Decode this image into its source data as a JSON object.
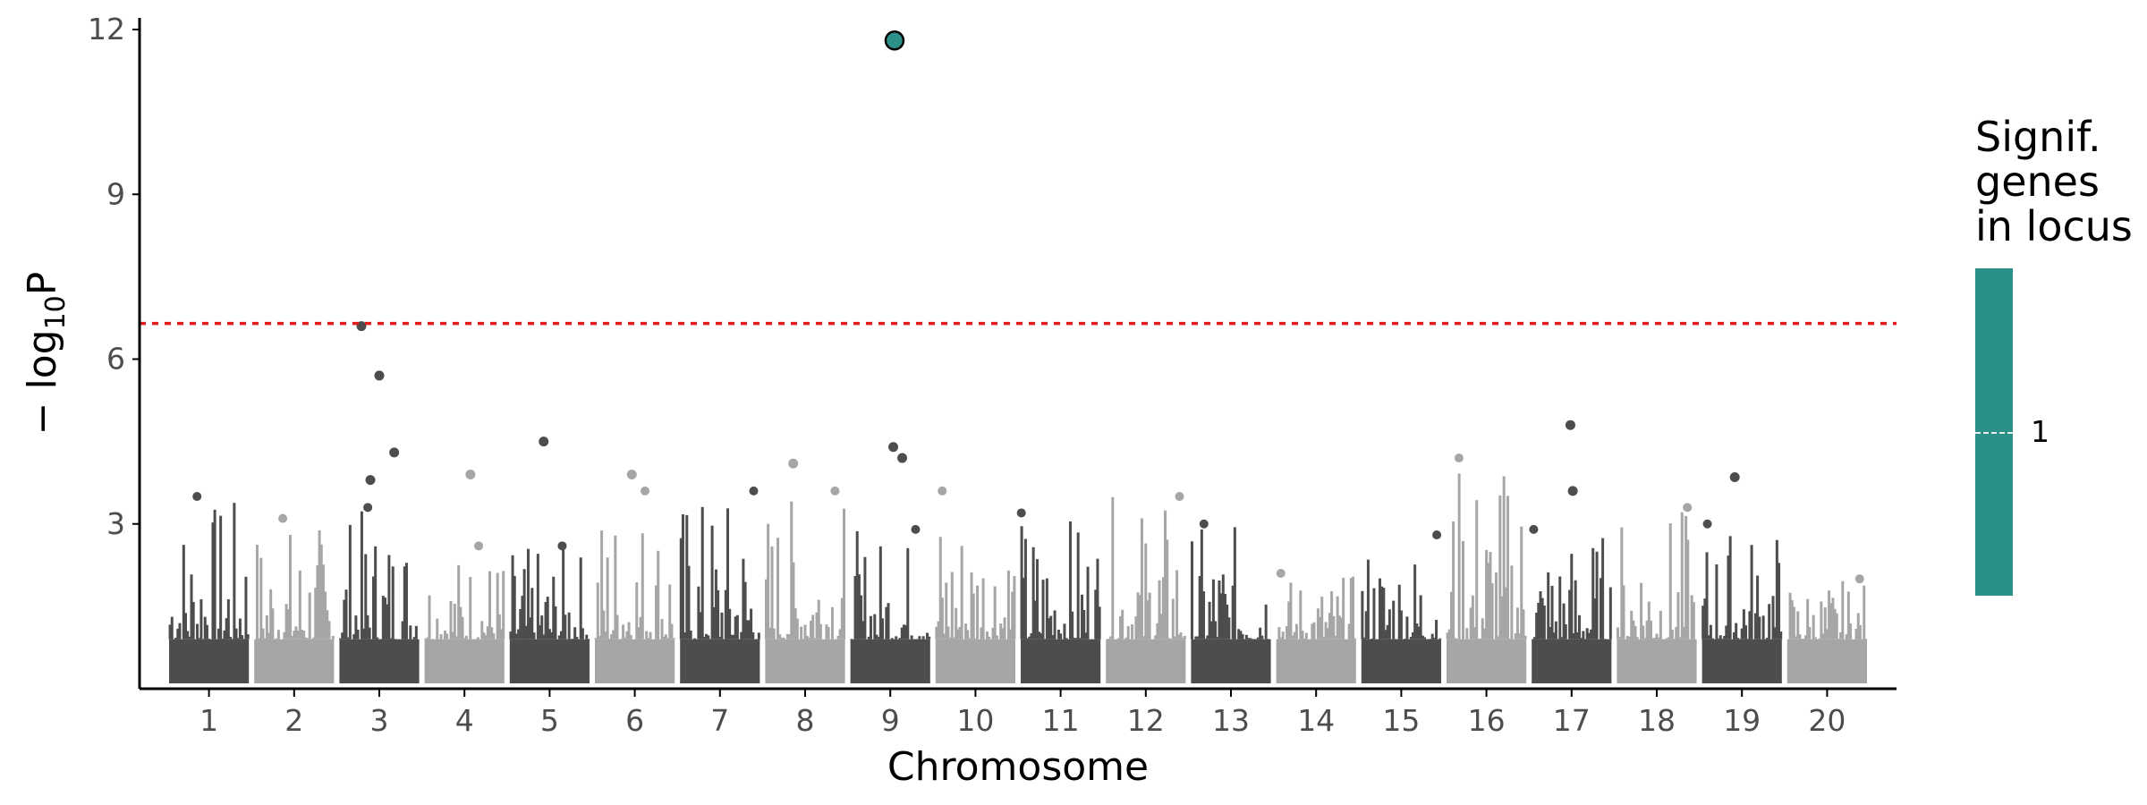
{
  "chart_data": {
    "type": "scatter",
    "subtype": "manhattan",
    "title": "",
    "xlabel": "Chromosome",
    "ylabel_prefix": "− log",
    "ylabel_sub": "10",
    "ylabel_suffix": "P",
    "ylim": [
      0,
      12
    ],
    "yticks": [
      3,
      6,
      9,
      12
    ],
    "chromosomes": [
      {
        "label": "1",
        "tick": 1,
        "start": 0.5,
        "end": 1.5,
        "color": "#4d4d4d",
        "peak": 3.5
      },
      {
        "label": "2",
        "tick": 2,
        "start": 1.5,
        "end": 2.5,
        "color": "#a6a6a6",
        "peak": 3.1
      },
      {
        "label": "3",
        "tick": 3,
        "start": 2.5,
        "end": 3.5,
        "color": "#4d4d4d",
        "peak": 3.3
      },
      {
        "label": "4",
        "tick": 4,
        "start": 3.5,
        "end": 4.5,
        "color": "#a6a6a6",
        "peak": 2.6
      },
      {
        "label": "5",
        "tick": 5,
        "start": 4.5,
        "end": 5.5,
        "color": "#4d4d4d",
        "peak": 2.6
      },
      {
        "label": "6",
        "tick": 6,
        "start": 5.5,
        "end": 6.5,
        "color": "#a6a6a6",
        "peak": 3.6
      },
      {
        "label": "7",
        "tick": 7,
        "start": 6.5,
        "end": 7.5,
        "color": "#4d4d4d",
        "peak": 3.6
      },
      {
        "label": "8",
        "tick": 8,
        "start": 7.5,
        "end": 8.5,
        "color": "#a6a6a6",
        "peak": 3.6
      },
      {
        "label": "9",
        "tick": 9,
        "start": 8.5,
        "end": 9.5,
        "color": "#4d4d4d",
        "peak": 2.9
      },
      {
        "label": "10",
        "tick": 10,
        "start": 9.5,
        "end": 10.5,
        "color": "#a6a6a6",
        "peak": 3.6
      },
      {
        "label": "11",
        "tick": 11,
        "start": 10.5,
        "end": 11.5,
        "color": "#4d4d4d",
        "peak": 3.2
      },
      {
        "label": "12",
        "tick": 12,
        "start": 11.5,
        "end": 12.5,
        "color": "#a6a6a6",
        "peak": 3.5
      },
      {
        "label": "13",
        "tick": 13,
        "start": 12.5,
        "end": 13.5,
        "color": "#4d4d4d",
        "peak": 3.0
      },
      {
        "label": "14",
        "tick": 14,
        "start": 13.5,
        "end": 14.5,
        "color": "#a6a6a6",
        "peak": 2.1
      },
      {
        "label": "15",
        "tick": 15,
        "start": 14.5,
        "end": 15.5,
        "color": "#4d4d4d",
        "peak": 2.8
      },
      {
        "label": "16",
        "tick": 16,
        "start": 15.5,
        "end": 16.5,
        "color": "#a6a6a6",
        "peak": 4.2
      },
      {
        "label": "17",
        "tick": 17,
        "start": 16.5,
        "end": 17.5,
        "color": "#4d4d4d",
        "peak": 2.9
      },
      {
        "label": "18",
        "tick": 18,
        "start": 17.5,
        "end": 18.5,
        "color": "#a6a6a6",
        "peak": 3.3
      },
      {
        "label": "19",
        "tick": 19,
        "start": 18.5,
        "end": 19.5,
        "color": "#4d4d4d",
        "peak": 3.0
      },
      {
        "label": "20",
        "tick": 20,
        "start": 19.5,
        "end": 20.5,
        "color": "#a6a6a6",
        "peak": 2.0
      }
    ],
    "notable_points": [
      {
        "chrom": "3",
        "y": 6.6
      },
      {
        "chrom": "3",
        "y": 5.7
      },
      {
        "chrom": "3",
        "y": 4.3
      },
      {
        "chrom": "3",
        "y": 3.8
      },
      {
        "chrom": "4",
        "y": 3.9
      },
      {
        "chrom": "5",
        "y": 4.5
      },
      {
        "chrom": "6",
        "y": 3.9
      },
      {
        "chrom": "8",
        "y": 4.1
      },
      {
        "chrom": "9",
        "y": 4.4
      },
      {
        "chrom": "9",
        "y": 4.2
      },
      {
        "chrom": "17",
        "y": 4.8
      },
      {
        "chrom": "17",
        "y": 3.6
      },
      {
        "chrom": "19",
        "y": 3.85
      }
    ],
    "highlighted_points": [
      {
        "chrom": "9",
        "y": 11.8,
        "signif_genes_in_locus": 1,
        "color": "#2a9088"
      }
    ],
    "threshold": {
      "y": 6.65,
      "color": "#e41a1c",
      "style": "dotted"
    },
    "legend": {
      "title": "Signif.\ngenes\nin locus",
      "labels": [
        "1"
      ],
      "color": "#2a9088",
      "placement": "right"
    },
    "grid": false
  }
}
